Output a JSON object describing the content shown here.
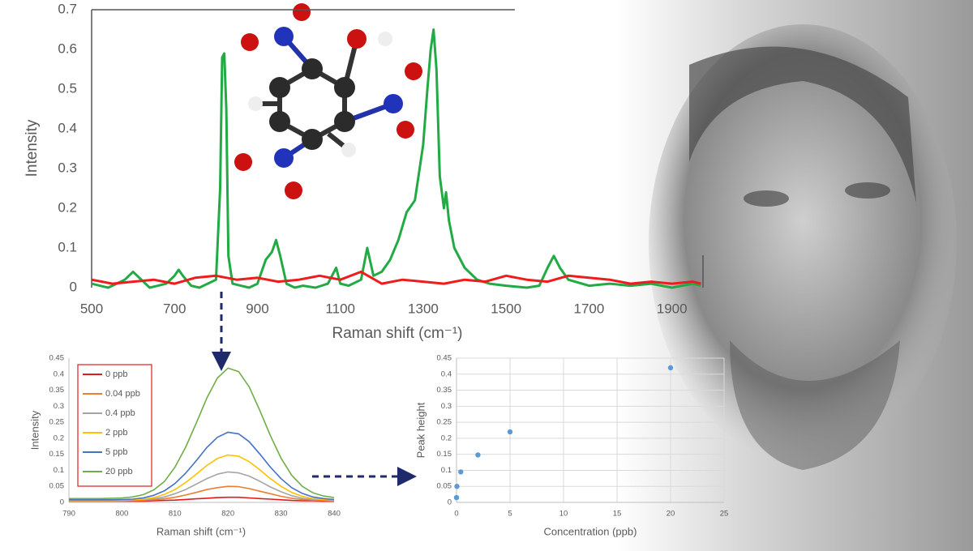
{
  "chart_data": [
    {
      "type": "line",
      "xlabel": "Raman shift (cm⁻¹)",
      "ylabel": "Intensity",
      "xlim": [
        500,
        1975
      ],
      "xticks": [
        500,
        700,
        900,
        1100,
        1300,
        1500,
        1700,
        1900
      ],
      "ylim": [
        0,
        0.7
      ],
      "yticks": [
        0,
        0.1,
        0.2,
        0.3,
        0.4,
        0.5,
        0.6,
        0.7
      ],
      "grid": false,
      "series": [
        {
          "color": "#22aa44",
          "x": [
            500,
            520,
            540,
            560,
            580,
            600,
            620,
            640,
            660,
            680,
            700,
            710,
            720,
            740,
            760,
            780,
            800,
            810,
            815,
            820,
            825,
            830,
            840,
            860,
            880,
            900,
            920,
            935,
            945,
            955,
            970,
            990,
            1010,
            1040,
            1070,
            1090,
            1100,
            1120,
            1150,
            1165,
            1180,
            1200,
            1220,
            1240,
            1260,
            1280,
            1300,
            1310,
            1318,
            1325,
            1332,
            1340,
            1350,
            1355,
            1362,
            1375,
            1400,
            1430,
            1460,
            1500,
            1550,
            1580,
            1600,
            1615,
            1630,
            1650,
            1700,
            1750,
            1800,
            1850,
            1900,
            1950,
            1970
          ],
          "values": [
            0.01,
            0.005,
            0.0,
            0.01,
            0.02,
            0.04,
            0.02,
            0.0,
            0.005,
            0.01,
            0.03,
            0.045,
            0.03,
            0.005,
            0.0,
            0.01,
            0.02,
            0.25,
            0.58,
            0.59,
            0.45,
            0.08,
            0.01,
            0.005,
            0.0,
            0.01,
            0.07,
            0.09,
            0.12,
            0.08,
            0.01,
            0.0,
            0.005,
            0.0,
            0.01,
            0.05,
            0.01,
            0.005,
            0.02,
            0.1,
            0.03,
            0.04,
            0.07,
            0.12,
            0.19,
            0.22,
            0.36,
            0.5,
            0.6,
            0.65,
            0.55,
            0.28,
            0.2,
            0.24,
            0.17,
            0.1,
            0.05,
            0.02,
            0.01,
            0.005,
            0.0,
            0.005,
            0.05,
            0.08,
            0.05,
            0.02,
            0.005,
            0.01,
            0.005,
            0.01,
            0.0,
            0.01,
            0.005
          ]
        },
        {
          "color": "#ee1c1c",
          "x": [
            500,
            550,
            600,
            650,
            700,
            750,
            800,
            850,
            900,
            950,
            1000,
            1050,
            1100,
            1150,
            1200,
            1250,
            1300,
            1350,
            1400,
            1450,
            1500,
            1550,
            1600,
            1650,
            1700,
            1750,
            1800,
            1850,
            1900,
            1950,
            1970
          ],
          "values": [
            0.02,
            0.01,
            0.015,
            0.02,
            0.01,
            0.025,
            0.03,
            0.02,
            0.025,
            0.015,
            0.02,
            0.03,
            0.02,
            0.04,
            0.01,
            0.02,
            0.015,
            0.01,
            0.02,
            0.015,
            0.03,
            0.02,
            0.015,
            0.03,
            0.025,
            0.02,
            0.01,
            0.015,
            0.01,
            0.015,
            0.01
          ]
        }
      ]
    },
    {
      "type": "line",
      "xlabel": "Raman shift (cm⁻¹)",
      "ylabel": "Intensity",
      "xlim": [
        790,
        840
      ],
      "xticks": [
        790,
        800,
        810,
        820,
        830,
        840
      ],
      "ylim": [
        0,
        0.45
      ],
      "yticks": [
        0,
        0.05,
        0.1,
        0.15,
        0.2,
        0.25,
        0.3,
        0.35,
        0.4,
        0.45
      ],
      "grid": false,
      "legend": "upper left",
      "x": [
        790,
        792,
        794,
        796,
        798,
        800,
        802,
        804,
        806,
        808,
        810,
        812,
        814,
        816,
        818,
        820,
        822,
        824,
        826,
        828,
        830,
        832,
        834,
        836,
        838,
        840
      ],
      "series": [
        {
          "name": "0 ppb",
          "color": "#e31a1c",
          "values": [
            0.004,
            0.004,
            0.004,
            0.004,
            0.004,
            0.004,
            0.004,
            0.004,
            0.005,
            0.006,
            0.007,
            0.009,
            0.011,
            0.013,
            0.015,
            0.016,
            0.016,
            0.014,
            0.012,
            0.01,
            0.008,
            0.006,
            0.005,
            0.005,
            0.004,
            0.004
          ]
        },
        {
          "name": "0.04 ppb",
          "color": "#ed7d31",
          "values": [
            0.005,
            0.005,
            0.005,
            0.005,
            0.005,
            0.005,
            0.006,
            0.006,
            0.008,
            0.011,
            0.016,
            0.023,
            0.031,
            0.04,
            0.046,
            0.05,
            0.049,
            0.043,
            0.035,
            0.027,
            0.019,
            0.013,
            0.009,
            0.007,
            0.006,
            0.005
          ]
        },
        {
          "name": "0.4 ppb",
          "color": "#a5a5a5",
          "values": [
            0.005,
            0.005,
            0.005,
            0.005,
            0.005,
            0.005,
            0.006,
            0.008,
            0.011,
            0.017,
            0.027,
            0.04,
            0.057,
            0.074,
            0.088,
            0.095,
            0.092,
            0.082,
            0.066,
            0.048,
            0.033,
            0.021,
            0.013,
            0.009,
            0.007,
            0.006
          ]
        },
        {
          "name": "2 ppb",
          "color": "#ffc000",
          "values": [
            0.006,
            0.006,
            0.006,
            0.006,
            0.006,
            0.007,
            0.008,
            0.01,
            0.015,
            0.025,
            0.04,
            0.062,
            0.088,
            0.115,
            0.137,
            0.148,
            0.144,
            0.127,
            0.102,
            0.074,
            0.05,
            0.031,
            0.019,
            0.012,
            0.009,
            0.007
          ]
        },
        {
          "name": "5 ppb",
          "color": "#4472c4",
          "values": [
            0.008,
            0.008,
            0.008,
            0.008,
            0.008,
            0.009,
            0.01,
            0.014,
            0.022,
            0.036,
            0.059,
            0.091,
            0.13,
            0.171,
            0.203,
            0.219,
            0.214,
            0.189,
            0.151,
            0.11,
            0.074,
            0.046,
            0.028,
            0.017,
            0.012,
            0.009
          ]
        },
        {
          "name": "20 ppb",
          "color": "#70ad47",
          "values": [
            0.012,
            0.012,
            0.012,
            0.012,
            0.013,
            0.014,
            0.017,
            0.024,
            0.039,
            0.065,
            0.11,
            0.172,
            0.247,
            0.325,
            0.388,
            0.419,
            0.408,
            0.36,
            0.287,
            0.208,
            0.138,
            0.085,
            0.05,
            0.03,
            0.02,
            0.015
          ]
        }
      ]
    },
    {
      "type": "scatter",
      "xlabel": "Concentration (ppb)",
      "ylabel": "Peak height",
      "xlim": [
        0,
        25
      ],
      "xticks": [
        0,
        5,
        10,
        15,
        20,
        25
      ],
      "ylim": [
        0,
        0.45
      ],
      "yticks": [
        0,
        0.05,
        0.1,
        0.15,
        0.2,
        0.25,
        0.3,
        0.35,
        0.4,
        0.45
      ],
      "grid": true,
      "series": [
        {
          "color": "#5b9bd5",
          "x": [
            0,
            0.04,
            0.4,
            2,
            5,
            20
          ],
          "values": [
            0.015,
            0.05,
            0.095,
            0.148,
            0.22,
            0.42
          ]
        }
      ]
    }
  ]
}
